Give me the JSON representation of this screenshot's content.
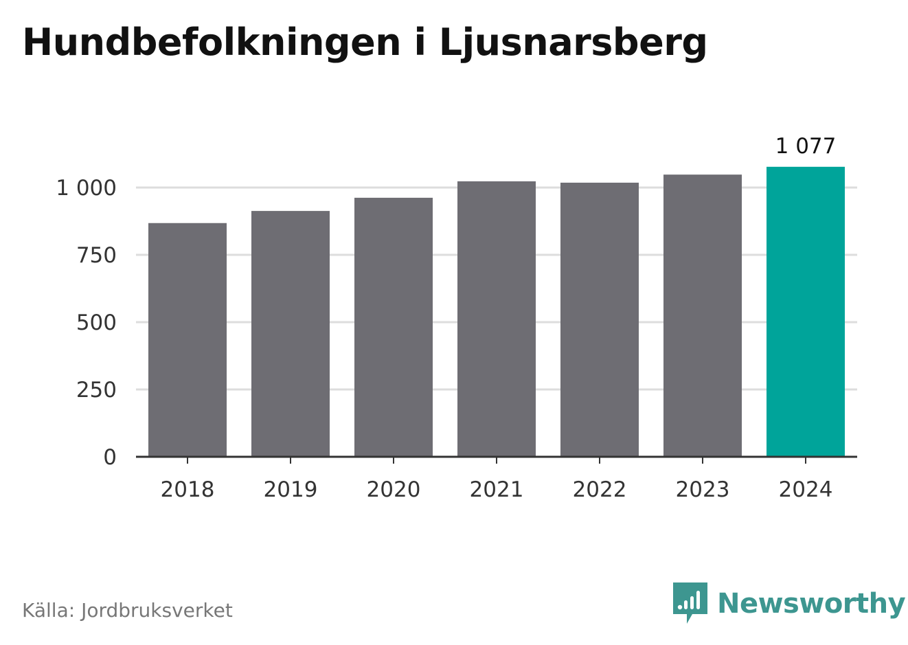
{
  "title": "Hundbefolkningen i Ljusnarsberg",
  "source": "Källa: Jordbruksverket",
  "brand": {
    "name": "Newsworthy",
    "icon": "newsworthy-logo-icon",
    "color": "#3d9690"
  },
  "colors": {
    "bar": "#6e6d73",
    "highlight": "#00a49a",
    "grid": "#dddddd",
    "axis": "#333333",
    "text": "#333333"
  },
  "chart_data": {
    "type": "bar",
    "categories": [
      "2018",
      "2019",
      "2020",
      "2021",
      "2022",
      "2023",
      "2024"
    ],
    "values": [
      868,
      913,
      962,
      1023,
      1018,
      1048,
      1077
    ],
    "highlight_index": 6,
    "data_labels": [
      null,
      null,
      null,
      null,
      null,
      null,
      "1 077"
    ],
    "title": "Hundbefolkningen i Ljusnarsberg",
    "xlabel": "",
    "ylabel": "",
    "ylim": [
      0,
      1100
    ],
    "yticks": [
      0,
      250,
      500,
      750,
      1000
    ],
    "ytick_labels": [
      "0",
      "250",
      "500",
      "750",
      "1 000"
    ],
    "grid": true,
    "legend": "none"
  }
}
